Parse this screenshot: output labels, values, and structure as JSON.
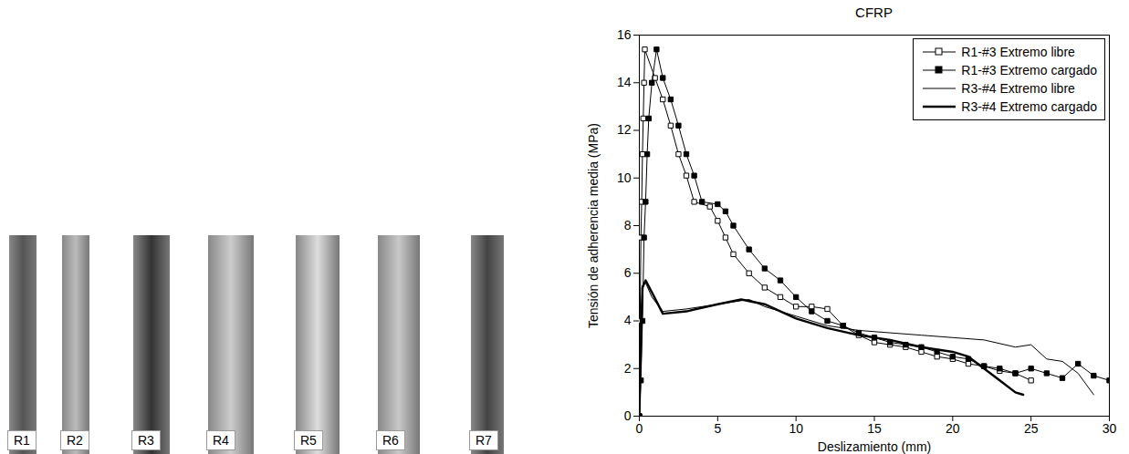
{
  "image": {
    "labels": [
      "R1",
      "R2",
      "R3",
      "R4",
      "R5",
      "R6",
      "R7"
    ]
  },
  "chart_data": {
    "type": "line",
    "title": "CFRP",
    "x_label": "Deslizamiento (mm)",
    "y_label": "Tensión de adherencia media (MPa)",
    "xlim": [
      0,
      30
    ],
    "xticks": [
      0,
      5,
      10,
      15,
      20,
      25,
      30
    ],
    "ylim": [
      0,
      16
    ],
    "yticks": [
      0,
      2,
      4,
      6,
      8,
      10,
      12,
      14,
      16
    ],
    "legend": "top-right",
    "series": [
      {
        "name": "R1-#3 Extremo libre",
        "color": "#000000",
        "marker": "square-open",
        "line_style": "thin",
        "x": [
          0,
          0.05,
          0.1,
          0.15,
          0.2,
          0.25,
          0.3,
          0.35,
          1,
          1.5,
          2,
          2.5,
          3,
          3.5,
          4.5,
          5,
          5.5,
          6,
          7,
          8,
          9,
          10,
          11,
          12,
          13,
          14,
          15,
          16,
          17,
          18,
          19,
          20,
          21,
          22,
          23,
          24,
          25
        ],
        "values": [
          0,
          4,
          7.5,
          9,
          11,
          12.5,
          14,
          15.4,
          14.2,
          13.3,
          12.2,
          11,
          10.1,
          9,
          8.8,
          8.2,
          7.5,
          6.8,
          6,
          5.4,
          5,
          4.6,
          4.6,
          4.5,
          3.8,
          3.4,
          3.1,
          3,
          2.9,
          2.7,
          2.5,
          2.4,
          2.2,
          2.1,
          1.9,
          1.8,
          1.5
        ]
      },
      {
        "name": "R1-#3 Extremo cargado",
        "color": "#000000",
        "marker": "square",
        "line_style": "thin",
        "x": [
          0,
          0.1,
          0.2,
          0.3,
          0.4,
          0.5,
          0.6,
          0.8,
          1.1,
          1.5,
          2,
          2.5,
          3,
          3.5,
          4,
          5,
          5.5,
          6,
          7,
          8,
          9,
          10,
          11,
          12,
          13,
          14,
          15,
          16,
          17,
          18,
          19,
          20,
          21,
          22,
          23,
          24,
          25,
          26,
          27,
          28,
          29,
          30
        ],
        "values": [
          0,
          1.5,
          4,
          7.5,
          9,
          11,
          12.5,
          14,
          15.4,
          14.2,
          13.3,
          12.2,
          11,
          10.1,
          9,
          8.9,
          8.6,
          8,
          7,
          6.2,
          5.7,
          5,
          4.4,
          4,
          3.8,
          3.5,
          3.3,
          3.1,
          3,
          2.9,
          2.7,
          2.5,
          2.4,
          2.1,
          2,
          1.8,
          2,
          1.8,
          1.6,
          2.2,
          1.7,
          1.5
        ]
      },
      {
        "name": "R3-#4 Extremo libre",
        "color": "#000000",
        "marker": "none",
        "line_style": "thin",
        "x": [
          0,
          0.1,
          0.2,
          0.4,
          0.8,
          1.5,
          3,
          5,
          7,
          8,
          10,
          12,
          14,
          16,
          18,
          20,
          22,
          24,
          25,
          26,
          27,
          28,
          29
        ],
        "values": [
          0,
          4,
          5.5,
          5.6,
          5,
          4.4,
          4.5,
          4.7,
          4.9,
          4.6,
          4.2,
          3.8,
          3.6,
          3.5,
          3.4,
          3.3,
          3.2,
          2.9,
          3,
          2.4,
          2.3,
          1.8,
          0.9
        ]
      },
      {
        "name": "R3-#4 Extremo cargado",
        "color": "#000000",
        "marker": "none",
        "line_style": "thick",
        "x": [
          0,
          0.1,
          0.2,
          0.4,
          0.8,
          1.5,
          3,
          5,
          6.5,
          8,
          10,
          12,
          14,
          16,
          18,
          20,
          21,
          22,
          23,
          24,
          24.5
        ],
        "values": [
          0,
          3,
          5.4,
          5.7,
          5.2,
          4.3,
          4.4,
          4.7,
          4.9,
          4.7,
          4.1,
          3.7,
          3.4,
          3.2,
          2.9,
          2.7,
          2.5,
          2,
          1.5,
          1,
          0.9
        ]
      }
    ]
  }
}
